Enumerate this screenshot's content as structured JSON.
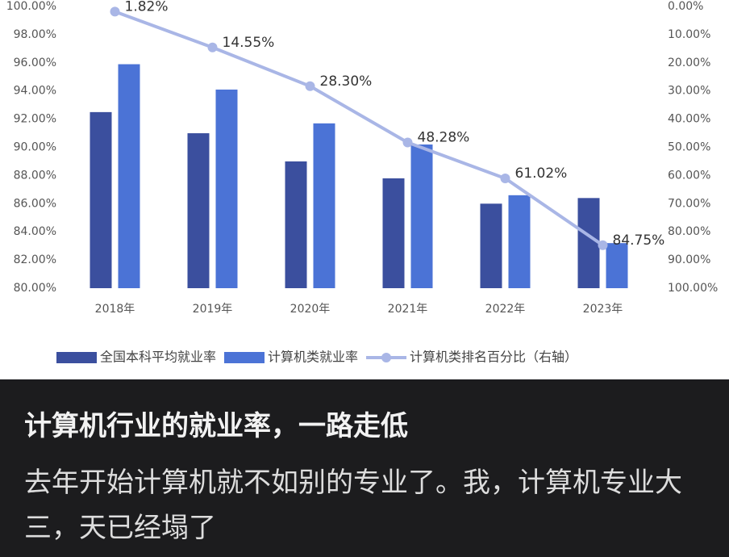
{
  "chart_data": {
    "type": "bar",
    "categories": [
      "2018年",
      "2019年",
      "2020年",
      "2021年",
      "2022年",
      "2023年"
    ],
    "series": [
      {
        "name": "全国本科平均就业率",
        "type": "bar",
        "color": "#3b4f9e",
        "values": [
          92.5,
          91.0,
          89.0,
          87.8,
          86.0,
          86.4
        ]
      },
      {
        "name": "计算机类就业率",
        "type": "bar",
        "color": "#4b73d6",
        "values": [
          95.9,
          94.1,
          91.7,
          90.2,
          86.6,
          83.2
        ]
      },
      {
        "name": "计算机类排名百分比（右轴）",
        "type": "line",
        "axis": "y2",
        "color": "#a9b6e6",
        "values": [
          1.82,
          14.55,
          28.3,
          48.28,
          61.02,
          84.75
        ],
        "value_labels": [
          "1.82%",
          "14.55%",
          "28.30%",
          "48.28%",
          "61.02%",
          "84.75%"
        ]
      }
    ],
    "ylim": [
      80,
      100
    ],
    "yticks": [
      {
        "value": 80,
        "label": "80.00%"
      },
      {
        "value": 82,
        "label": "82.00%"
      },
      {
        "value": 84,
        "label": "84.00%"
      },
      {
        "value": 86,
        "label": "86.00%"
      },
      {
        "value": 88,
        "label": "88.00%"
      },
      {
        "value": 90,
        "label": "90.00%"
      },
      {
        "value": 92,
        "label": "92.00%"
      },
      {
        "value": 94,
        "label": "94.00%"
      },
      {
        "value": 96,
        "label": "96.00%"
      },
      {
        "value": 98,
        "label": "98.00%"
      },
      {
        "value": 100,
        "label": "100.00%"
      }
    ],
    "y2lim": [
      100,
      0
    ],
    "y2ticks": [
      {
        "value": 0,
        "label": "0.00%"
      },
      {
        "value": 10,
        "label": "10.00%"
      },
      {
        "value": 20,
        "label": "20.00%"
      },
      {
        "value": 30,
        "label": "30.00%"
      },
      {
        "value": 40,
        "label": "40.00%"
      },
      {
        "value": 50,
        "label": "50.00%"
      },
      {
        "value": 60,
        "label": "60.00%"
      },
      {
        "value": 70,
        "label": "70.00%"
      },
      {
        "value": 80,
        "label": "80.00%"
      },
      {
        "value": 90,
        "label": "90.00%"
      },
      {
        "value": 100,
        "label": "100.00%"
      }
    ],
    "legend": "bottom"
  },
  "post": {
    "title": "计算机行业的就业率，一路走低",
    "body": "去年开始计算机就不如别的专业了。我，计算机专业大三，天已经塌了"
  }
}
